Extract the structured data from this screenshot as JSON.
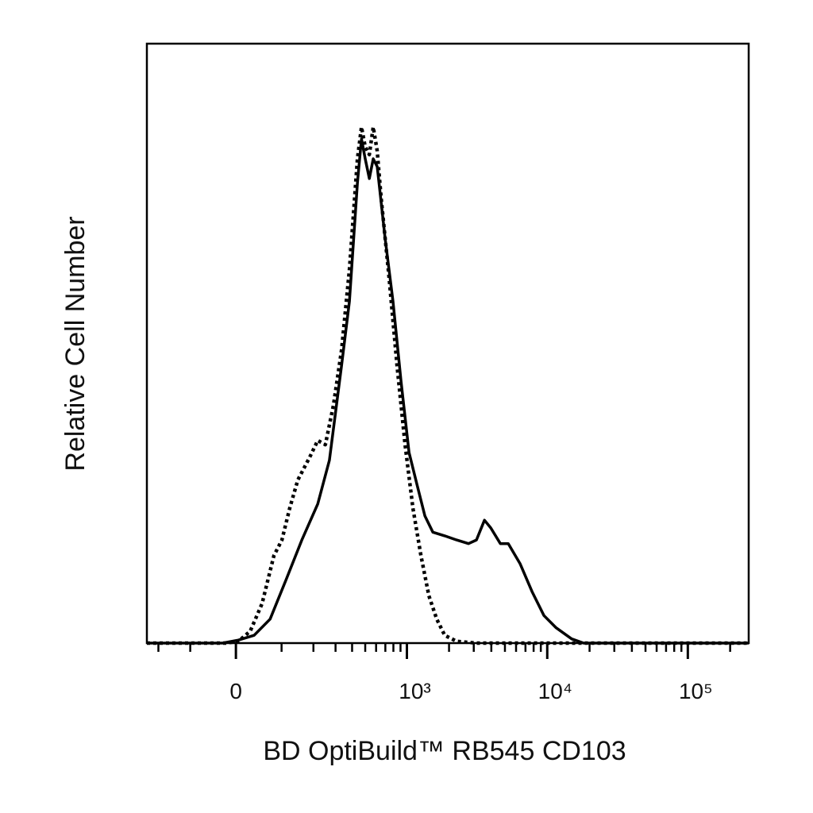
{
  "chart_data": {
    "type": "histogram-line",
    "x_label": "BD OptiBuild™ RB545 CD103",
    "y_label": "Relative Cell Number",
    "xscale": "asinh",
    "xlim": [
      -248,
      271000
    ],
    "ylim": [
      0,
      100
    ],
    "xticks": [
      0,
      {
        "value": 1000,
        "label": "10³"
      },
      {
        "value": 10000,
        "label": "10⁴"
      },
      {
        "value": 100000,
        "label": "10⁵"
      }
    ],
    "xminor_ticks": [
      -200,
      -100,
      100,
      200,
      300,
      400,
      500,
      600,
      700,
      800,
      900,
      2000,
      3000,
      4000,
      5000,
      6000,
      7000,
      8000,
      9000,
      20000,
      30000,
      40000,
      50000,
      60000,
      70000,
      80000,
      90000,
      200000
    ],
    "series": [
      {
        "color": "#000000",
        "dash": "solid",
        "x": [
          -248,
          -27,
          5,
          37,
          72,
          112,
          159,
          217,
          269,
          334,
          382,
          438,
          469,
          500,
          536,
          572,
          611,
          698,
          795,
          908,
          1036,
          1180,
          1346,
          1534,
          1863,
          2264,
          2752,
          3135,
          3575,
          3965,
          4636,
          5283,
          6417,
          7796,
          9467,
          11505,
          14921,
          18141,
          271000
        ],
        "values": [
          0,
          0,
          0.5,
          1.3,
          4.0,
          10.6,
          17.2,
          23.2,
          30.5,
          46.4,
          57.0,
          76.8,
          84.1,
          80.8,
          77.5,
          80.8,
          79.5,
          67.5,
          57.0,
          43.7,
          31.8,
          26.5,
          21.2,
          18.5,
          17.9,
          17.2,
          16.6,
          17.2,
          20.5,
          19.2,
          16.6,
          16.6,
          13.2,
          8.6,
          4.6,
          2.6,
          0.7,
          0,
          0
        ]
      },
      {
        "color": "#000000",
        "dash": "dotted",
        "x": [
          -248,
          -19,
          5,
          29,
          54,
          81,
          101,
          122,
          146,
          187,
          217,
          250,
          289,
          334,
          382,
          438,
          469,
          500,
          536,
          572,
          611,
          653,
          745,
          849,
          970,
          1105,
          1260,
          1436,
          1634,
          1863,
          2264,
          3135,
          271000
        ],
        "values": [
          0,
          0,
          0.3,
          2.0,
          6.6,
          14.6,
          17.2,
          22.5,
          27.2,
          31.1,
          33.8,
          33.1,
          39.7,
          49.0,
          62.3,
          80.8,
          86.1,
          82.8,
          81.5,
          86.1,
          82.1,
          74.2,
          60.9,
          46.4,
          33.1,
          22.5,
          14.6,
          7.9,
          4.0,
          1.3,
          0.3,
          0,
          0
        ]
      }
    ]
  }
}
